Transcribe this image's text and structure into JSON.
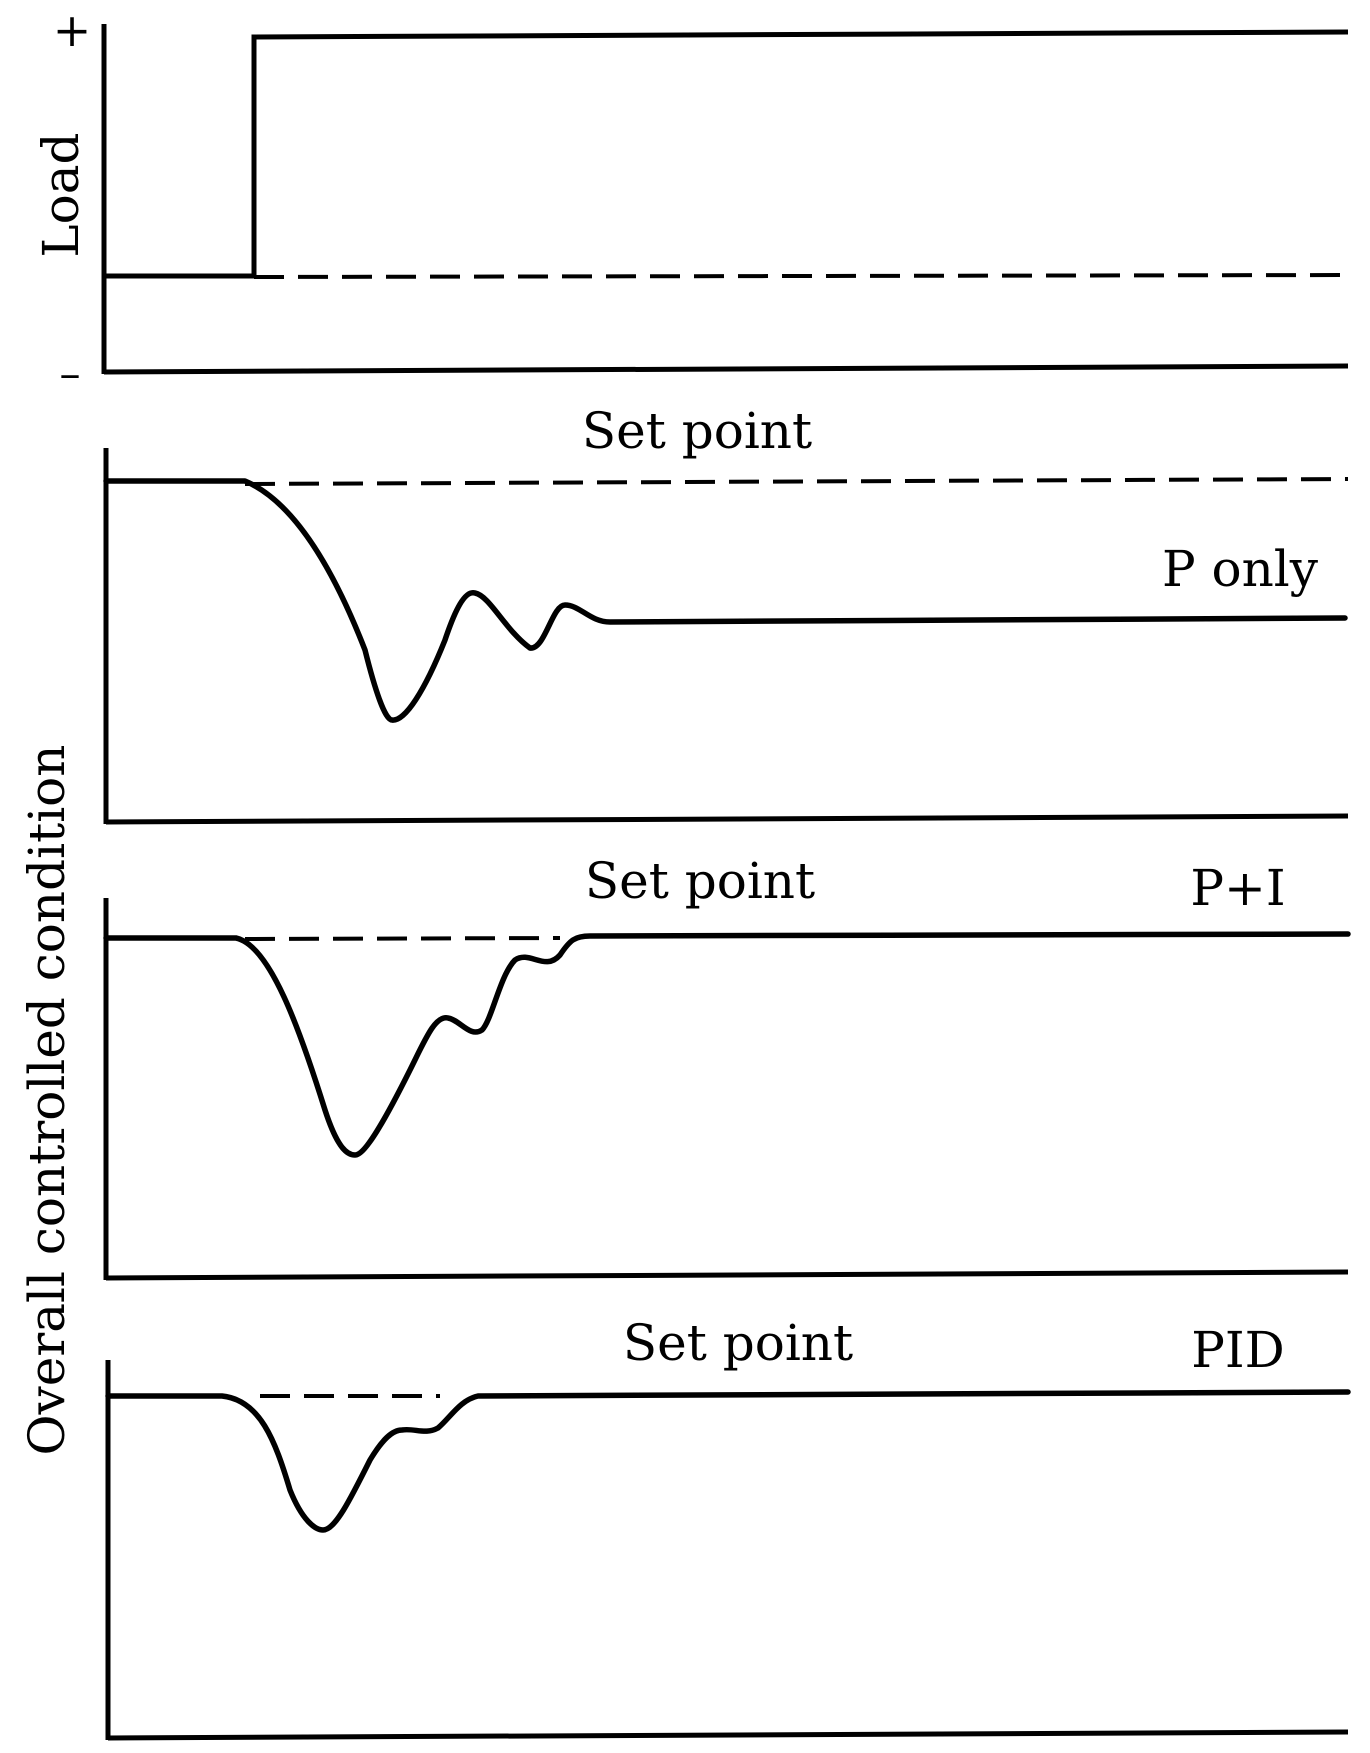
{
  "load_panel": {
    "ylabel": "Load",
    "plus_sign": "+",
    "minus_sign": "–"
  },
  "shared_ylabel": "Overall controlled condition",
  "panels": [
    {
      "setpoint_label": "Set point",
      "controller_label": "P only"
    },
    {
      "setpoint_label": "Set point",
      "controller_label": "P+I"
    },
    {
      "setpoint_label": "Set point",
      "controller_label": "PID"
    }
  ],
  "colors": {
    "line": "#000000",
    "background": "#ffffff"
  }
}
